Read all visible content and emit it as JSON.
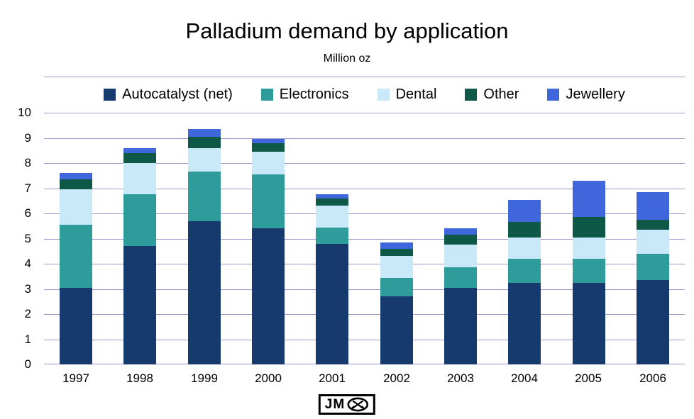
{
  "title": "Palladium demand by application",
  "subtitle": "Million oz",
  "footer": {
    "logo_text": "JM",
    "logo_icon": "hammer-and-pick-icon"
  },
  "colors": {
    "gridline": "#9a9ac8",
    "background": "#ffffff",
    "autocatalyst": "#163a6e",
    "electronics": "#2e9c9a",
    "dental": "#c9e9f8",
    "other": "#0e5848",
    "jewellery": "#3f66db"
  },
  "chart_data": {
    "type": "bar",
    "subtype": "stacked",
    "title": "Palladium demand by application",
    "subtitle": "Million oz",
    "xlabel": "",
    "ylabel": "Million oz",
    "ylim": [
      0,
      10
    ],
    "yticks": [
      0,
      1,
      2,
      3,
      4,
      5,
      6,
      7,
      8,
      9,
      10
    ],
    "grid": true,
    "legend_position": "top",
    "categories": [
      "1997",
      "1998",
      "1999",
      "2000",
      "2001",
      "2002",
      "2003",
      "2004",
      "2005",
      "2006"
    ],
    "series": [
      {
        "name": "Autocatalyst (net)",
        "color": "#163a6e",
        "values": [
          3.05,
          4.7,
          5.7,
          5.4,
          4.8,
          2.7,
          3.05,
          3.25,
          3.25,
          3.35
        ]
      },
      {
        "name": "Electronics",
        "color": "#2e9c9a",
        "values": [
          2.5,
          2.05,
          1.95,
          2.15,
          0.65,
          0.75,
          0.8,
          0.95,
          0.95,
          1.05
        ]
      },
      {
        "name": "Dental",
        "color": "#c9e9f8",
        "values": [
          1.4,
          1.25,
          0.95,
          0.9,
          0.85,
          0.85,
          0.9,
          0.85,
          0.85,
          0.95
        ]
      },
      {
        "name": "Other",
        "color": "#0e5848",
        "values": [
          0.4,
          0.4,
          0.45,
          0.35,
          0.3,
          0.3,
          0.4,
          0.6,
          0.8,
          0.4
        ]
      },
      {
        "name": "Jewellery",
        "color": "#3f66db",
        "values": [
          0.25,
          0.2,
          0.3,
          0.15,
          0.15,
          0.25,
          0.25,
          0.9,
          1.45,
          1.1
        ]
      }
    ],
    "totals": [
      7.6,
      8.6,
      9.35,
      8.95,
      6.75,
      4.85,
      5.4,
      6.55,
      7.3,
      6.85
    ]
  }
}
